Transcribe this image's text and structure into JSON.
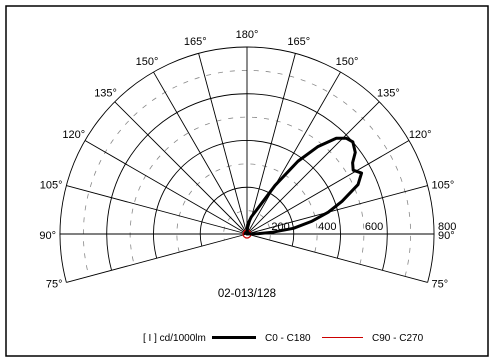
{
  "chart_data": {
    "type": "polar",
    "angle_labels": [
      {
        "value": 180,
        "text": "180°"
      },
      {
        "value": 165,
        "text": "165°"
      },
      {
        "value": 150,
        "text": "150°"
      },
      {
        "value": 135,
        "text": "135°"
      },
      {
        "value": 120,
        "text": "120°"
      },
      {
        "value": 105,
        "text": "105°"
      },
      {
        "value": 90,
        "text": "90°"
      },
      {
        "value": 75,
        "text": "75°"
      }
    ],
    "radial_ticks": [
      {
        "value": 200,
        "text": "200"
      },
      {
        "value": 400,
        "text": "400"
      },
      {
        "value": 600,
        "text": "600"
      },
      {
        "value": 800,
        "text": "800"
      }
    ],
    "r_max": 800,
    "chart_code": "02-013/128",
    "unit_label": "[ I ] cd/1000lm",
    "series": [
      {
        "name": "C0 - C180",
        "color": "#000000",
        "line_width": 3,
        "points": [
          {
            "angle": 90,
            "r": 0
          },
          {
            "angle": 92,
            "r": 50
          },
          {
            "angle": 94,
            "r": 110
          },
          {
            "angle": 97,
            "r": 200
          },
          {
            "angle": 101,
            "r": 280
          },
          {
            "angle": 105,
            "r": 360
          },
          {
            "angle": 109,
            "r": 430
          },
          {
            "angle": 114,
            "r": 520
          },
          {
            "angle": 118,
            "r": 555
          },
          {
            "angle": 121,
            "r": 530
          },
          {
            "angle": 124,
            "r": 545
          },
          {
            "angle": 127,
            "r": 580
          },
          {
            "angle": 131,
            "r": 600
          },
          {
            "angle": 134,
            "r": 590
          },
          {
            "angle": 137,
            "r": 560
          },
          {
            "angle": 141,
            "r": 480
          },
          {
            "angle": 145,
            "r": 380
          },
          {
            "angle": 150,
            "r": 240
          },
          {
            "angle": 157,
            "r": 120
          },
          {
            "angle": 166,
            "r": 75
          },
          {
            "angle": 176,
            "r": 40
          },
          {
            "angle": 180,
            "r": 0
          }
        ]
      },
      {
        "name": "C90 - C270",
        "color": "#cc0000",
        "line_width": 1,
        "points": []
      }
    ]
  }
}
